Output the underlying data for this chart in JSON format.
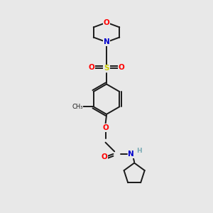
{
  "bg_color": "#e8e8e8",
  "bond_color": "#1a1a1a",
  "atom_colors": {
    "O": "#ff0000",
    "N": "#0000cc",
    "S": "#cccc00",
    "H": "#7aabb5",
    "C": "#1a1a1a"
  },
  "figsize": [
    3.0,
    3.0
  ],
  "dpi": 100,
  "xlim": [
    0,
    10
  ],
  "ylim": [
    0,
    10
  ]
}
